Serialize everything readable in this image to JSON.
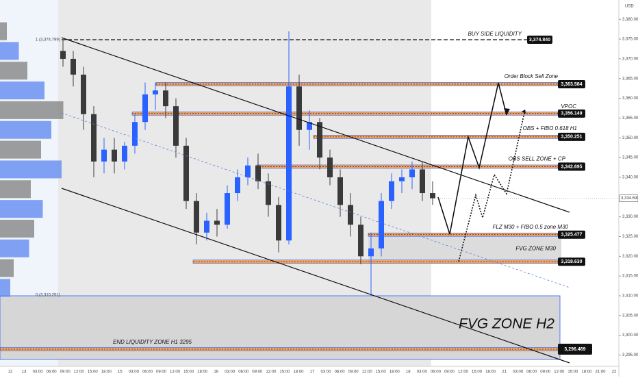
{
  "chart_data": {
    "type": "candlestick",
    "currency": "USD",
    "up_color": "#2962ff",
    "down_color": "#3a3a3a",
    "ylim": [
      3292.14,
      3384.9
    ],
    "yticks": [
      {
        "value": 3295,
        "label": "3,295.000"
      },
      {
        "value": 3300,
        "label": "3,300.000"
      },
      {
        "value": 3305,
        "label": "3,305.000"
      },
      {
        "value": 3310,
        "label": "3,310.000"
      },
      {
        "value": 3315,
        "label": "3,315.000"
      },
      {
        "value": 3320,
        "label": "3,320.000"
      },
      {
        "value": 3325,
        "label": "3,325.000"
      },
      {
        "value": 3330,
        "label": "3,330.000"
      },
      {
        "value": 3335,
        "label": "3,335.000"
      },
      {
        "value": 3340,
        "label": "3,340.000"
      },
      {
        "value": 3345,
        "label": "3,345.000"
      },
      {
        "value": 3350,
        "label": "3,350.000"
      },
      {
        "value": 3355,
        "label": "3,355.000"
      },
      {
        "value": 3360,
        "label": "3,360.000"
      },
      {
        "value": 3365,
        "label": "3,365.000"
      },
      {
        "value": 3370,
        "label": "3,370.000"
      },
      {
        "value": 3375,
        "label": "3,375.000"
      },
      {
        "value": 3380,
        "label": "3,380.000"
      }
    ],
    "x_labels": [
      "12",
      "13",
      "03:00",
      "06:00",
      "09:00",
      "12:00",
      "15:00",
      "18:00",
      "15",
      "03:00",
      "06:00",
      "09:00",
      "12:00",
      "15:00",
      "18:00",
      "16",
      "03:00",
      "06:00",
      "09:00",
      "12:00",
      "15:00",
      "18:00",
      "17",
      "03:00",
      "06:00",
      "09:00",
      "12:00",
      "15:00",
      "18:00",
      "18",
      "03:00",
      "06:00",
      "09:00",
      "12:00",
      "15:00",
      "18:00",
      "21",
      "03:00",
      "06:00",
      "09:00",
      "12:00",
      "15:00",
      "18:00",
      "21:00",
      "22"
    ],
    "open": [
      3372,
      3370,
      3366,
      3356,
      3344,
      3347,
      3344,
      3348,
      3354,
      3361,
      3362,
      3358,
      3348,
      3334,
      3326,
      3329,
      3328,
      3336,
      3340,
      3343,
      3339,
      3333,
      3324,
      3363,
      3352,
      3354,
      3345,
      3340,
      3333,
      3328,
      3320,
      3322,
      3334,
      3339,
      3340,
      3342,
      3336
    ],
    "high": [
      3375,
      3372,
      3368,
      3358,
      3350,
      3350,
      3349,
      3356,
      3364,
      3364,
      3364,
      3360,
      3350,
      3336,
      3331,
      3332,
      3338,
      3342,
      3345,
      3346,
      3341,
      3335,
      3377,
      3366,
      3357,
      3355,
      3347,
      3342,
      3336,
      3330,
      3326,
      3336,
      3341,
      3342,
      3344,
      3344,
      3339
    ],
    "low": [
      3368,
      3363,
      3352,
      3340,
      3341,
      3341,
      3342,
      3346,
      3352,
      3357,
      3355,
      3345,
      3332,
      3323,
      3324,
      3325,
      3327,
      3334,
      3338,
      3337,
      3330,
      3321,
      3323,
      3348,
      3347,
      3342,
      3338,
      3330,
      3325,
      3318,
      3310,
      3320,
      3332,
      3336,
      3337,
      3334,
      3333
    ],
    "close": [
      3370,
      3366,
      3356,
      3344,
      3347,
      3344,
      3348,
      3354,
      3361,
      3362,
      3358,
      3348,
      3334,
      3326,
      3329,
      3328,
      3336,
      3340,
      3343,
      3339,
      3333,
      3324,
      3363,
      3352,
      3354,
      3345,
      3340,
      3333,
      3328,
      3320,
      3322,
      3334,
      3339,
      3340,
      3342,
      3336,
      3334.69
    ],
    "current_price": {
      "value": 3334.69,
      "label": "3,334.690"
    },
    "levels": [
      {
        "name": "BUY SIDE LIQUIDITY",
        "value": 3374.84,
        "value_label": "3,374.840"
      },
      {
        "name": "Order Block Sell Zone",
        "value": 3363.584,
        "value_label": "3,363.584"
      },
      {
        "name": "VPOC",
        "value": 3356.149,
        "value_label": "3,356.149"
      },
      {
        "name": "OBS + FIBO 0.618 H1",
        "value": 3350.251,
        "value_label": "3,350.251"
      },
      {
        "name": "OBS SELL ZONE + CP",
        "value": 3342.695,
        "value_label": "3,342.695"
      },
      {
        "name": "FLZ M30 + FIBO 0.5 zone M30",
        "value": 3325.477,
        "value_label": "3,325.477"
      },
      {
        "name": "FVG ZONE M30",
        "value": 3318.63,
        "value_label": "3,318.630"
      },
      {
        "name": "END LIQUIDITY ZONE H1 3295",
        "value": 3296.469,
        "value_label": "3,296.469"
      }
    ],
    "zone_title": "FVG ZONE H2",
    "fib_labels": [
      "1 (3,374.799)",
      "0 (3,310.251)"
    ],
    "volume_profile": {
      "prices": [
        3377,
        3372,
        3367,
        3362,
        3357,
        3352,
        3347,
        3342,
        3337,
        3332,
        3327,
        3322,
        3317,
        3312
      ],
      "values": [
        20,
        55,
        80,
        130,
        185,
        150,
        120,
        180,
        90,
        125,
        100,
        85,
        40,
        30
      ]
    }
  }
}
